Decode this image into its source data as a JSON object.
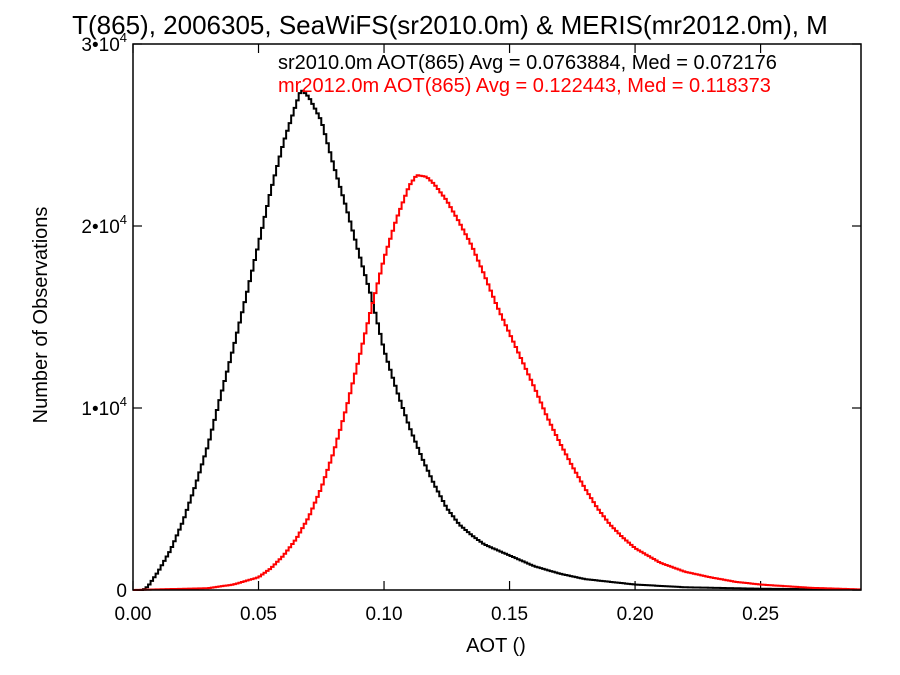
{
  "chart_data": {
    "type": "line",
    "title": "T(865), 2006305, SeaWiFS(sr2010.0m) & MERIS(mr2012.0m), M",
    "xlabel": "AOT ()",
    "ylabel": "Number of Observations",
    "xlim": [
      0.0,
      0.29
    ],
    "ylim": [
      0,
      30000
    ],
    "x_ticks": [
      {
        "value": 0.0,
        "label": "0.00"
      },
      {
        "value": 0.05,
        "label": "0.05"
      },
      {
        "value": 0.1,
        "label": "0.10"
      },
      {
        "value": 0.15,
        "label": "0.15"
      },
      {
        "value": 0.2,
        "label": "0.20"
      },
      {
        "value": 0.25,
        "label": "0.25"
      }
    ],
    "y_ticks": [
      {
        "value": 0,
        "mantissa": "0",
        "exp": ""
      },
      {
        "value": 10000,
        "mantissa": "1•10",
        "exp": "4"
      },
      {
        "value": 20000,
        "mantissa": "2•10",
        "exp": "4"
      },
      {
        "value": 30000,
        "mantissa": "3•10",
        "exp": "4"
      }
    ],
    "annotations": [
      {
        "text": "sr2010.0m AOT(865) Avg = 0.0763884, Med = 0.072176",
        "color": "#000000"
      },
      {
        "text": "mr2012.0m AOT(865) Avg = 0.122443, Med = 0.118373",
        "color": "#ff0000"
      }
    ],
    "series": [
      {
        "color": "#000000",
        "points": [
          [
            0.0,
            0
          ],
          [
            0.004,
            0
          ],
          [
            0.006,
            200
          ],
          [
            0.01,
            1000
          ],
          [
            0.015,
            2200
          ],
          [
            0.02,
            3800
          ],
          [
            0.025,
            5800
          ],
          [
            0.03,
            8000
          ],
          [
            0.035,
            10700
          ],
          [
            0.04,
            13300
          ],
          [
            0.045,
            16100
          ],
          [
            0.05,
            19000
          ],
          [
            0.055,
            22000
          ],
          [
            0.06,
            24600
          ],
          [
            0.065,
            26700
          ],
          [
            0.067,
            27500
          ],
          [
            0.07,
            27100
          ],
          [
            0.075,
            25800
          ],
          [
            0.08,
            23300
          ],
          [
            0.085,
            21000
          ],
          [
            0.09,
            18500
          ],
          [
            0.095,
            16100
          ],
          [
            0.1,
            13200
          ],
          [
            0.105,
            11000
          ],
          [
            0.11,
            9000
          ],
          [
            0.115,
            7300
          ],
          [
            0.12,
            5800
          ],
          [
            0.125,
            4500
          ],
          [
            0.13,
            3600
          ],
          [
            0.135,
            3000
          ],
          [
            0.14,
            2500
          ],
          [
            0.15,
            1900
          ],
          [
            0.16,
            1300
          ],
          [
            0.17,
            900
          ],
          [
            0.18,
            600
          ],
          [
            0.2,
            300
          ],
          [
            0.22,
            150
          ],
          [
            0.25,
            70
          ],
          [
            0.29,
            20
          ]
        ]
      },
      {
        "color": "#ff0000",
        "points": [
          [
            0.0,
            0
          ],
          [
            0.03,
            100
          ],
          [
            0.04,
            300
          ],
          [
            0.05,
            700
          ],
          [
            0.055,
            1200
          ],
          [
            0.06,
            1900
          ],
          [
            0.065,
            2800
          ],
          [
            0.07,
            4000
          ],
          [
            0.075,
            5600
          ],
          [
            0.08,
            7600
          ],
          [
            0.085,
            10000
          ],
          [
            0.09,
            12700
          ],
          [
            0.095,
            15500
          ],
          [
            0.1,
            18200
          ],
          [
            0.105,
            20400
          ],
          [
            0.11,
            22200
          ],
          [
            0.113,
            22800
          ],
          [
            0.117,
            22700
          ],
          [
            0.12,
            22300
          ],
          [
            0.125,
            21400
          ],
          [
            0.13,
            20200
          ],
          [
            0.135,
            18900
          ],
          [
            0.14,
            17300
          ],
          [
            0.145,
            15600
          ],
          [
            0.15,
            14100
          ],
          [
            0.155,
            12600
          ],
          [
            0.16,
            11100
          ],
          [
            0.165,
            9500
          ],
          [
            0.17,
            8100
          ],
          [
            0.175,
            6800
          ],
          [
            0.18,
            5600
          ],
          [
            0.185,
            4500
          ],
          [
            0.19,
            3600
          ],
          [
            0.195,
            2900
          ],
          [
            0.2,
            2300
          ],
          [
            0.21,
            1500
          ],
          [
            0.22,
            1000
          ],
          [
            0.23,
            700
          ],
          [
            0.24,
            450
          ],
          [
            0.25,
            300
          ],
          [
            0.27,
            120
          ],
          [
            0.29,
            30
          ]
        ]
      }
    ]
  }
}
